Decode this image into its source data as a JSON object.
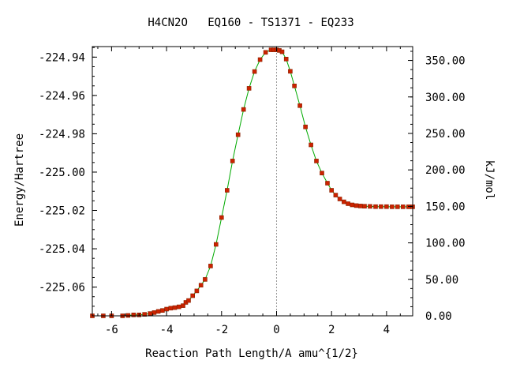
{
  "chart_data": {
    "type": "line",
    "title": "H4CN2O   EQ160 - TS1371 - EQ233",
    "xlabel": "Reaction Path Length/A amu^{1/2}",
    "ylabel": "Energy/Hartree",
    "y2label": "kJ/mol",
    "xlim": [
      -6.7,
      4.95
    ],
    "ylim": [
      -225.075,
      -224.9345
    ],
    "y2lim": [
      0,
      369
    ],
    "x_ticks": [
      -6,
      -4,
      -2,
      0,
      2,
      4
    ],
    "x_tick_labels": [
      "-6",
      "-4",
      "-2",
      "0",
      "2",
      "4"
    ],
    "y_ticks": [
      -224.94,
      -224.96,
      -224.98,
      -225.0,
      -225.02,
      -225.04,
      -225.06
    ],
    "y_tick_labels": [
      "-224.94",
      "-224.96",
      "-224.98",
      "-225.00",
      "-225.02",
      "-225.04",
      "-225.06"
    ],
    "y2_ticks": [
      350,
      300,
      250,
      200,
      150,
      100,
      50,
      0
    ],
    "y2_tick_labels": [
      "350.00",
      "300.00",
      "250.00",
      "200.00",
      "150.00",
      "100.00",
      "50.00",
      "0.00"
    ],
    "transition_state_x": 0,
    "colors": {
      "line": "#00aa00",
      "marker": "#cc2200",
      "marker_edge": "#882200",
      "ts_line": "#999999",
      "frame": "#000000"
    },
    "series": [
      {
        "x": [
          -6.7,
          -6.3,
          -6.0,
          -5.6,
          -5.4,
          -5.2,
          -5.0,
          -4.8,
          -4.6,
          -4.45,
          -4.3,
          -4.15,
          -4.0,
          -3.85,
          -3.7,
          -3.55,
          -3.4,
          -3.3,
          -3.2,
          -3.05,
          -2.9,
          -2.75,
          -2.6,
          -2.4,
          -2.2,
          -2.0,
          -1.8,
          -1.6,
          -1.4,
          -1.2,
          -1.0,
          -0.8,
          -0.6,
          -0.4,
          -0.2,
          -0.1,
          0,
          0.1,
          0.2,
          0.35,
          0.5,
          0.65,
          0.85,
          1.05,
          1.25,
          1.45,
          1.65,
          1.85,
          2.0,
          2.15,
          2.3,
          2.45,
          2.6,
          2.75,
          2.9,
          3.05,
          3.2,
          3.4,
          3.6,
          3.8,
          4.0,
          4.2,
          4.4,
          4.6,
          4.8,
          4.95
        ],
        "y": [
          -225.075,
          -225.075,
          -225.075,
          -225.075,
          -225.0748,
          -225.0745,
          -225.0745,
          -225.0742,
          -225.0738,
          -225.0733,
          -225.0727,
          -225.0722,
          -225.0715,
          -225.071,
          -225.0707,
          -225.0703,
          -225.0697,
          -225.068,
          -225.067,
          -225.0645,
          -225.062,
          -225.059,
          -225.056,
          -225.049,
          -225.0377,
          -225.0237,
          -225.0095,
          -224.9942,
          -224.9805,
          -224.9673,
          -224.9563,
          -224.9475,
          -224.9413,
          -224.9375,
          -224.9362,
          -224.9362,
          -224.9362,
          -224.9365,
          -224.9372,
          -224.941,
          -224.9474,
          -224.955,
          -224.9653,
          -224.9764,
          -224.9858,
          -224.9942,
          -225.0005,
          -225.0058,
          -225.0095,
          -225.012,
          -225.014,
          -225.0155,
          -225.0165,
          -225.0171,
          -225.0175,
          -225.0177,
          -225.0178,
          -225.0179,
          -225.018,
          -225.018,
          -225.018,
          -225.0181,
          -225.0181,
          -225.0181,
          -225.0181,
          -225.0181
        ]
      }
    ]
  }
}
